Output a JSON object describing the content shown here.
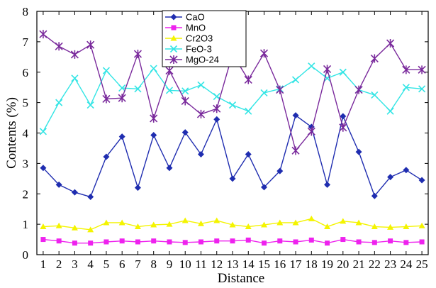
{
  "chart_data": {
    "type": "line",
    "xlabel": "Distance",
    "ylabel": "Contents (%)",
    "x": [
      1,
      2,
      3,
      4,
      5,
      6,
      7,
      8,
      9,
      10,
      11,
      12,
      13,
      14,
      15,
      16,
      17,
      18,
      19,
      20,
      21,
      22,
      23,
      24,
      25
    ],
    "xlim": [
      0.6,
      25.4
    ],
    "ylim": [
      0,
      8
    ],
    "yticks": [
      0,
      1,
      2,
      3,
      4,
      5,
      6,
      7,
      8
    ],
    "grid": false,
    "legend_position": "top-center",
    "series": [
      {
        "name": "CaO",
        "color": "#1f2db0",
        "marker": "diamond",
        "values": [
          2.85,
          2.3,
          2.05,
          1.9,
          3.22,
          3.88,
          2.2,
          3.93,
          2.85,
          4.02,
          3.3,
          4.45,
          2.5,
          3.3,
          2.22,
          2.75,
          4.58,
          4.2,
          2.3,
          4.55,
          3.38,
          1.93,
          2.55,
          2.78,
          2.45
        ]
      },
      {
        "name": "MnO",
        "color": "#ee22ee",
        "marker": "square",
        "values": [
          0.5,
          0.45,
          0.38,
          0.38,
          0.42,
          0.45,
          0.42,
          0.45,
          0.42,
          0.4,
          0.42,
          0.45,
          0.45,
          0.48,
          0.38,
          0.45,
          0.42,
          0.48,
          0.38,
          0.5,
          0.42,
          0.4,
          0.45,
          0.4,
          0.42
        ]
      },
      {
        "name": "Cr2O3",
        "color": "#f4f400",
        "marker": "triangle",
        "values": [
          0.92,
          0.95,
          0.88,
          0.82,
          1.05,
          1.05,
          0.92,
          0.98,
          1.0,
          1.12,
          1.02,
          1.12,
          0.98,
          0.92,
          0.98,
          1.05,
          1.05,
          1.18,
          0.92,
          1.1,
          1.05,
          0.92,
          0.9,
          0.92,
          0.95
        ]
      },
      {
        "name": "FeO-3",
        "color": "#33e5e5",
        "marker": "x",
        "values": [
          4.05,
          5.0,
          5.8,
          4.92,
          6.05,
          5.48,
          5.45,
          6.12,
          5.4,
          5.38,
          5.58,
          5.2,
          4.92,
          4.72,
          5.32,
          5.45,
          5.75,
          6.2,
          5.8,
          6.0,
          5.42,
          5.25,
          4.72,
          5.5,
          5.45
        ]
      },
      {
        "name": "MgO-24",
        "color": "#7a2a9c",
        "marker": "asterisk",
        "values": [
          7.25,
          6.85,
          6.58,
          6.9,
          5.12,
          5.15,
          6.6,
          4.48,
          6.05,
          5.05,
          4.62,
          4.8,
          6.6,
          5.75,
          6.62,
          5.42,
          3.42,
          4.05,
          6.1,
          4.18,
          5.42,
          6.45,
          6.95,
          6.08,
          6.08
        ]
      }
    ]
  }
}
